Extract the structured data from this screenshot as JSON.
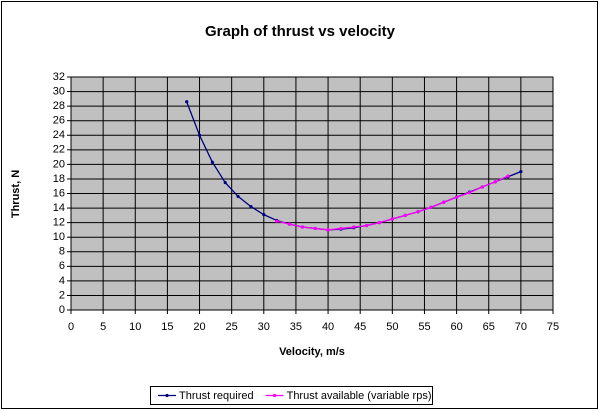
{
  "chart_data": {
    "type": "line",
    "title": "Graph of thrust vs velocity",
    "x_label": "Velocity, m/s",
    "y_label": "Thrust, N",
    "xlim": [
      0,
      75
    ],
    "xticks": [
      0,
      5,
      10,
      15,
      20,
      25,
      30,
      35,
      40,
      45,
      50,
      55,
      60,
      65,
      70,
      75
    ],
    "ylim": [
      0,
      32
    ],
    "yticks": [
      0,
      2,
      4,
      6,
      8,
      10,
      12,
      14,
      16,
      18,
      20,
      22,
      24,
      26,
      28,
      30,
      32
    ],
    "grid": true,
    "legend": "bottom",
    "series": [
      {
        "name": "Thrust required",
        "color": "#000080",
        "x": [
          18,
          20,
          22,
          24,
          26,
          28,
          30,
          32,
          34,
          36,
          38,
          40,
          42,
          44,
          46,
          48,
          50,
          52,
          54,
          56,
          58,
          60,
          62,
          64,
          66,
          68,
          70
        ],
        "values": [
          28.6,
          24.0,
          20.3,
          17.5,
          15.6,
          14.2,
          13.1,
          12.3,
          11.8,
          11.4,
          11.2,
          11.0,
          11.1,
          11.3,
          11.6,
          12.0,
          12.5,
          13.0,
          13.5,
          14.1,
          14.8,
          15.5,
          16.2,
          16.9,
          17.6,
          18.3,
          19.0
        ]
      },
      {
        "name": "Thrust available (variable rps)",
        "color": "#ff00ff",
        "x": [
          32,
          34,
          36,
          38,
          40,
          42,
          44,
          46,
          48,
          50,
          52,
          54,
          56,
          58,
          60,
          62,
          64,
          66,
          68
        ],
        "values": [
          12.2,
          11.8,
          11.4,
          11.2,
          11.0,
          11.2,
          11.4,
          11.6,
          12.0,
          12.5,
          13.0,
          13.5,
          14.1,
          14.8,
          15.5,
          16.1,
          16.9,
          17.6,
          18.4
        ]
      }
    ]
  }
}
